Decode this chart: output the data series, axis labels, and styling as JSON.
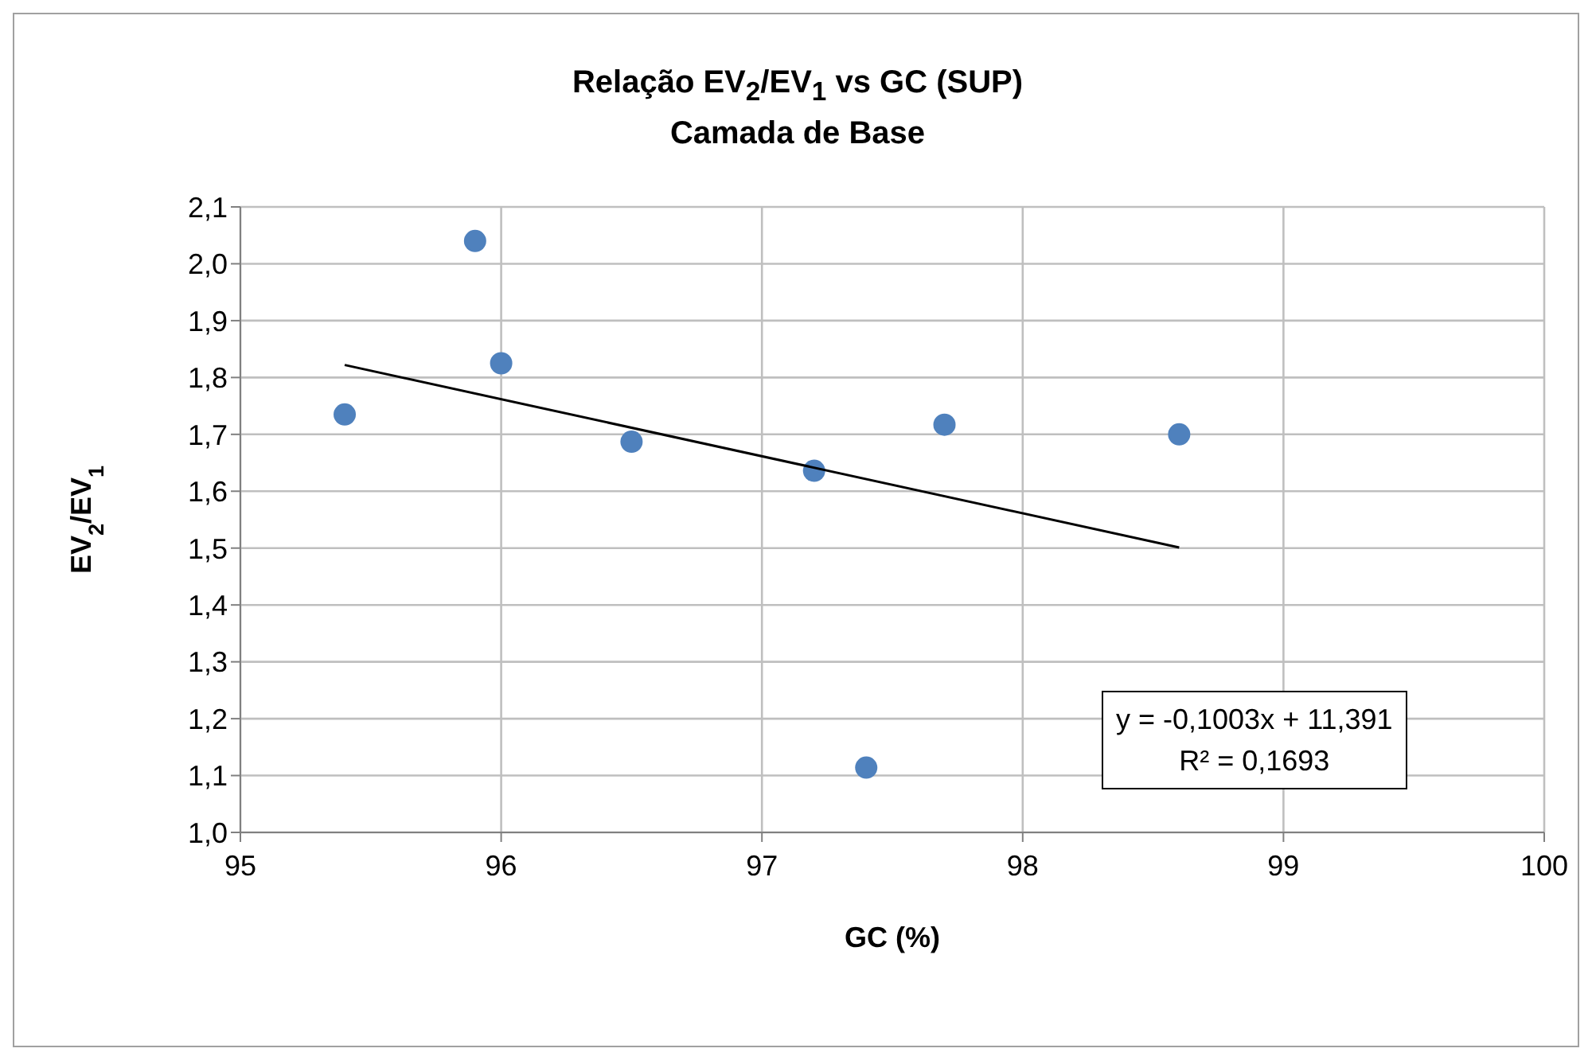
{
  "chart_data": {
    "type": "scatter",
    "title": "Relação EV$_{2}$/EV$_{1}$ vs GC (SUP)",
    "subtitle": "Camada de Base",
    "xlabel": "GC (%)",
    "ylabel": "EV$_{2}$/EV$_{1}$",
    "series": [
      {
        "type": "scatter",
        "color": "#4f81bd",
        "marker": "circle",
        "x": [
          95.4,
          95.9,
          96.0,
          96.5,
          97.2,
          97.4,
          97.7,
          98.6
        ],
        "values": [
          1.735,
          2.04,
          1.825,
          1.687,
          1.636,
          1.114,
          1.717,
          1.7
        ]
      },
      {
        "type": "line",
        "color": "#000000",
        "marker": "none",
        "x": [
          95.4,
          98.6
        ],
        "values": [
          1.822,
          1.501
        ]
      }
    ],
    "xlim": [
      95,
      100
    ],
    "xticks": [
      95,
      96,
      97,
      98,
      99,
      100
    ],
    "ylim": [
      1.0,
      2.1
    ],
    "yticks": [
      {
        "value": 1.0,
        "label": "1,0"
      },
      {
        "value": 1.1,
        "label": "1,1"
      },
      {
        "value": 1.2,
        "label": "1,2"
      },
      {
        "value": 1.3,
        "label": "1,3"
      },
      {
        "value": 1.4,
        "label": "1,4"
      },
      {
        "value": 1.5,
        "label": "1,5"
      },
      {
        "value": 1.6,
        "label": "1,6"
      },
      {
        "value": 1.7,
        "label": "1,7"
      },
      {
        "value": 1.8,
        "label": "1,8"
      },
      {
        "value": 1.9,
        "label": "1,9"
      },
      {
        "value": 2.0,
        "label": "2,0"
      },
      {
        "value": 2.1,
        "label": "2,1"
      }
    ],
    "grid": true,
    "annotations": [
      "y = -0,1003x + 11,391",
      "R² = 0,1693"
    ]
  }
}
